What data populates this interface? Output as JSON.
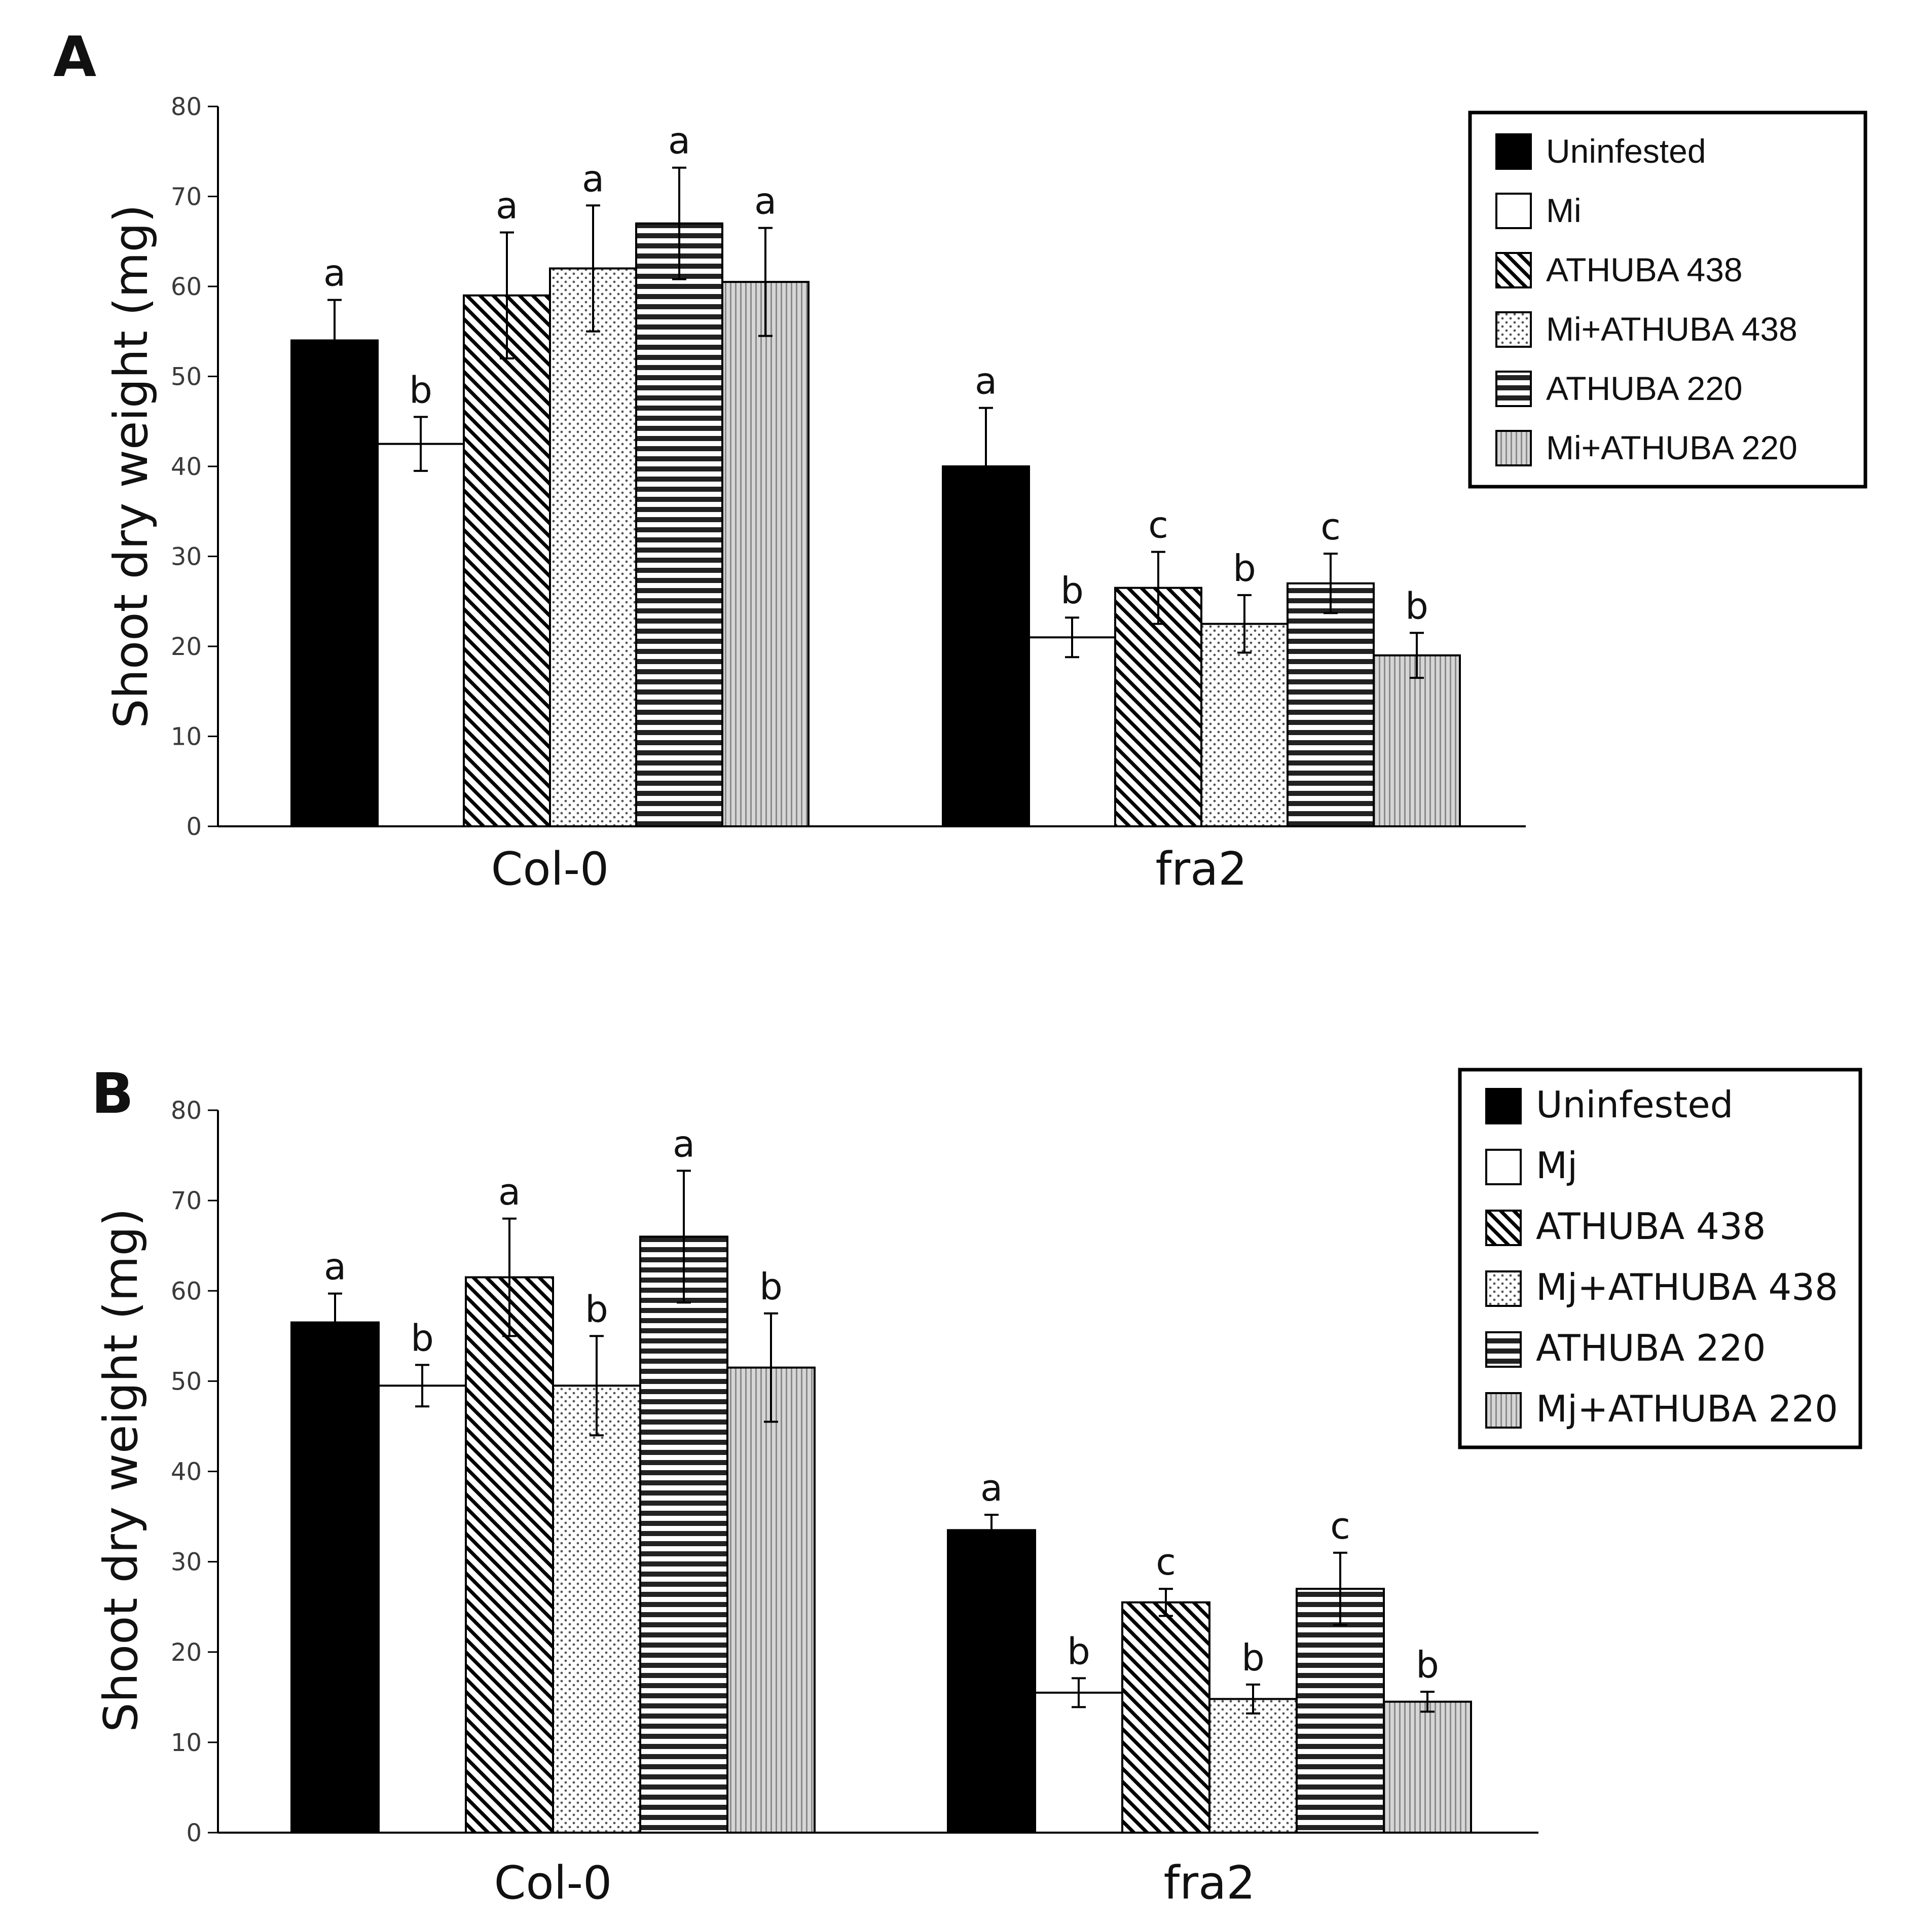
{
  "colors": {
    "uninfested": "#000000",
    "infested": "#ffffff",
    "athuba438": "#ffffff",
    "mix438": "#ffffff",
    "athuba220": "#ffffff",
    "mix220": "#d0d0d0",
    "stroke": "#000000"
  },
  "chart_data": [
    {
      "panel": "A",
      "type": "bar",
      "ylabel": "Shoot dry weight (mg)",
      "ylim": [
        0,
        80
      ],
      "yticks": [
        "0",
        "10",
        "20",
        "30",
        "40",
        "50",
        "60",
        "70",
        "80"
      ],
      "categories": [
        "Col-0",
        "fra2"
      ],
      "legend_position": "top-right",
      "series": [
        {
          "name": "Uninfested",
          "pattern": "solid",
          "values": [
            54,
            40
          ],
          "errors": [
            4.5,
            6.5
          ],
          "letters": [
            "a",
            "a"
          ]
        },
        {
          "name": "Mi",
          "pattern": "empty",
          "values": [
            42.5,
            21
          ],
          "errors": [
            3,
            2.2
          ],
          "letters": [
            "b",
            "b"
          ]
        },
        {
          "name": "ATHUBA 438",
          "pattern": "diagonal",
          "values": [
            59,
            26.5
          ],
          "errors": [
            7,
            4
          ],
          "letters": [
            "a",
            "c"
          ]
        },
        {
          "name": "Mi+ATHUBA 438",
          "pattern": "dots",
          "values": [
            62,
            22.5
          ],
          "errors": [
            7,
            3.2
          ],
          "letters": [
            "a",
            "b"
          ]
        },
        {
          "name": "ATHUBA 220",
          "pattern": "horizontal",
          "values": [
            67,
            27
          ],
          "errors": [
            6.2,
            3.3
          ],
          "letters": [
            "a",
            "c"
          ]
        },
        {
          "name": "Mi+ATHUBA 220",
          "pattern": "vertical",
          "values": [
            60.5,
            19
          ],
          "errors": [
            6,
            2.5
          ],
          "letters": [
            "a",
            "b"
          ]
        }
      ]
    },
    {
      "panel": "B",
      "type": "bar",
      "ylabel": "Shoot dry weight (mg)",
      "ylim": [
        0,
        80
      ],
      "yticks": [
        "0",
        "10",
        "20",
        "30",
        "40",
        "50",
        "60",
        "70",
        "80"
      ],
      "categories": [
        "Col-0",
        "fra2"
      ],
      "legend_position": "top-right",
      "series": [
        {
          "name": "Uninfested",
          "pattern": "solid",
          "values": [
            56.5,
            33.5
          ],
          "errors": [
            3.2,
            1.7
          ],
          "letters": [
            "a",
            "a"
          ]
        },
        {
          "name": "Mj",
          "pattern": "empty",
          "values": [
            49.5,
            15.5
          ],
          "errors": [
            2.3,
            1.6
          ],
          "letters": [
            "b",
            "b"
          ]
        },
        {
          "name": "ATHUBA 438",
          "pattern": "diagonal",
          "values": [
            61.5,
            25.5
          ],
          "errors": [
            6.5,
            1.5
          ],
          "letters": [
            "a",
            "c"
          ]
        },
        {
          "name": "Mj+ATHUBA 438",
          "pattern": "dots",
          "values": [
            49.5,
            14.8
          ],
          "errors": [
            5.5,
            1.6
          ],
          "letters": [
            "b",
            "b"
          ]
        },
        {
          "name": "ATHUBA 220",
          "pattern": "horizontal",
          "values": [
            66,
            27
          ],
          "errors": [
            7.3,
            4
          ],
          "letters": [
            "a",
            "c"
          ]
        },
        {
          "name": "Mj+ATHUBA 220",
          "pattern": "vertical",
          "values": [
            51.5,
            14.5
          ],
          "errors": [
            6,
            1.1
          ],
          "letters": [
            "b",
            "b"
          ]
        }
      ]
    }
  ]
}
